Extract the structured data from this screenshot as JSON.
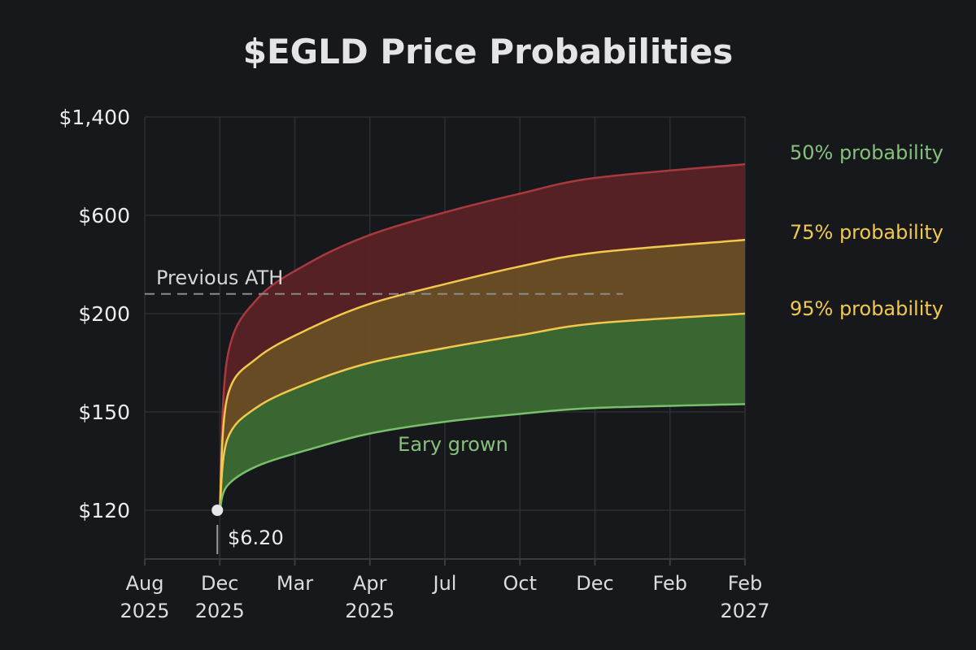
{
  "colors": {
    "background": "#17181c",
    "red_band": "#5a2226",
    "red_line": "#a83a3e",
    "orange_band": "#6c4e26",
    "yellow_line": "#f2c94c",
    "green_band": "#3c6a34",
    "green_line": "#78c06a",
    "ath_line": "#8a8a8a",
    "label_green": "#86c17a",
    "label_yellow": "#f2c94c"
  },
  "chart_data": {
    "type": "area",
    "title": "$EGLD Price Probabilities",
    "x_tick_labels": [
      [
        "Aug",
        "2025"
      ],
      [
        "Dec",
        "2025"
      ],
      [
        "Mar",
        ""
      ],
      [
        "Apr",
        "2025"
      ],
      [
        "Jul",
        ""
      ],
      [
        "Oct",
        ""
      ],
      [
        "Dec",
        ""
      ],
      [
        "Feb",
        ""
      ],
      [
        "Feb",
        "2027"
      ]
    ],
    "y_tick_labels": [
      "$1,400",
      "$600",
      "$200",
      "$150",
      "$120"
    ],
    "y_scale": "categorical (non-linear tick spacing)",
    "grid": true,
    "start_point": {
      "x": "Dec 2025",
      "y_tick": "$120",
      "label": "$6.20"
    },
    "series": [
      {
        "name": "50% probability",
        "color": "#a83a3e",
        "x_ticks": [
          1,
          2,
          3,
          4,
          5,
          6,
          7,
          8
        ],
        "y_tick_positions": [
          4.0,
          2.45,
          1.85,
          1.48,
          1.2,
          0.97,
          0.78,
          0.62,
          0.48
        ]
      },
      {
        "name": "75% probability",
        "color": "#f2c94c",
        "y_tick_positions": [
          4.0,
          2.85,
          2.45,
          2.15,
          1.9,
          1.7,
          1.52,
          1.38,
          1.25
        ]
      },
      {
        "name": "95% probability",
        "color": "#f2c94c",
        "y_tick_positions": [
          4.0,
          3.28,
          2.95,
          2.7,
          2.5,
          2.35,
          2.22,
          2.1,
          2.0
        ]
      },
      {
        "name": "",
        "color": "#78c06a",
        "y_tick_positions": [
          4.0,
          3.75,
          3.55,
          3.38,
          3.22,
          3.1,
          3.02,
          2.96,
          2.92
        ]
      }
    ],
    "series_x_positions": [
      1.0,
      1.1,
      1.5,
      2.2,
      3.0,
      4.0,
      5.0,
      6.0,
      8.0
    ],
    "band_labels": [
      {
        "text": "50% probability",
        "color": "#86c17a"
      },
      {
        "text": "75% probability",
        "color": "#f2c94c"
      },
      {
        "text": "95% probability",
        "color": "#f2c94c"
      }
    ],
    "annotations": {
      "ath_label": "Previous ATH",
      "ath_y_tick_position": 1.8,
      "early_growth_label": "Eary grown"
    }
  }
}
